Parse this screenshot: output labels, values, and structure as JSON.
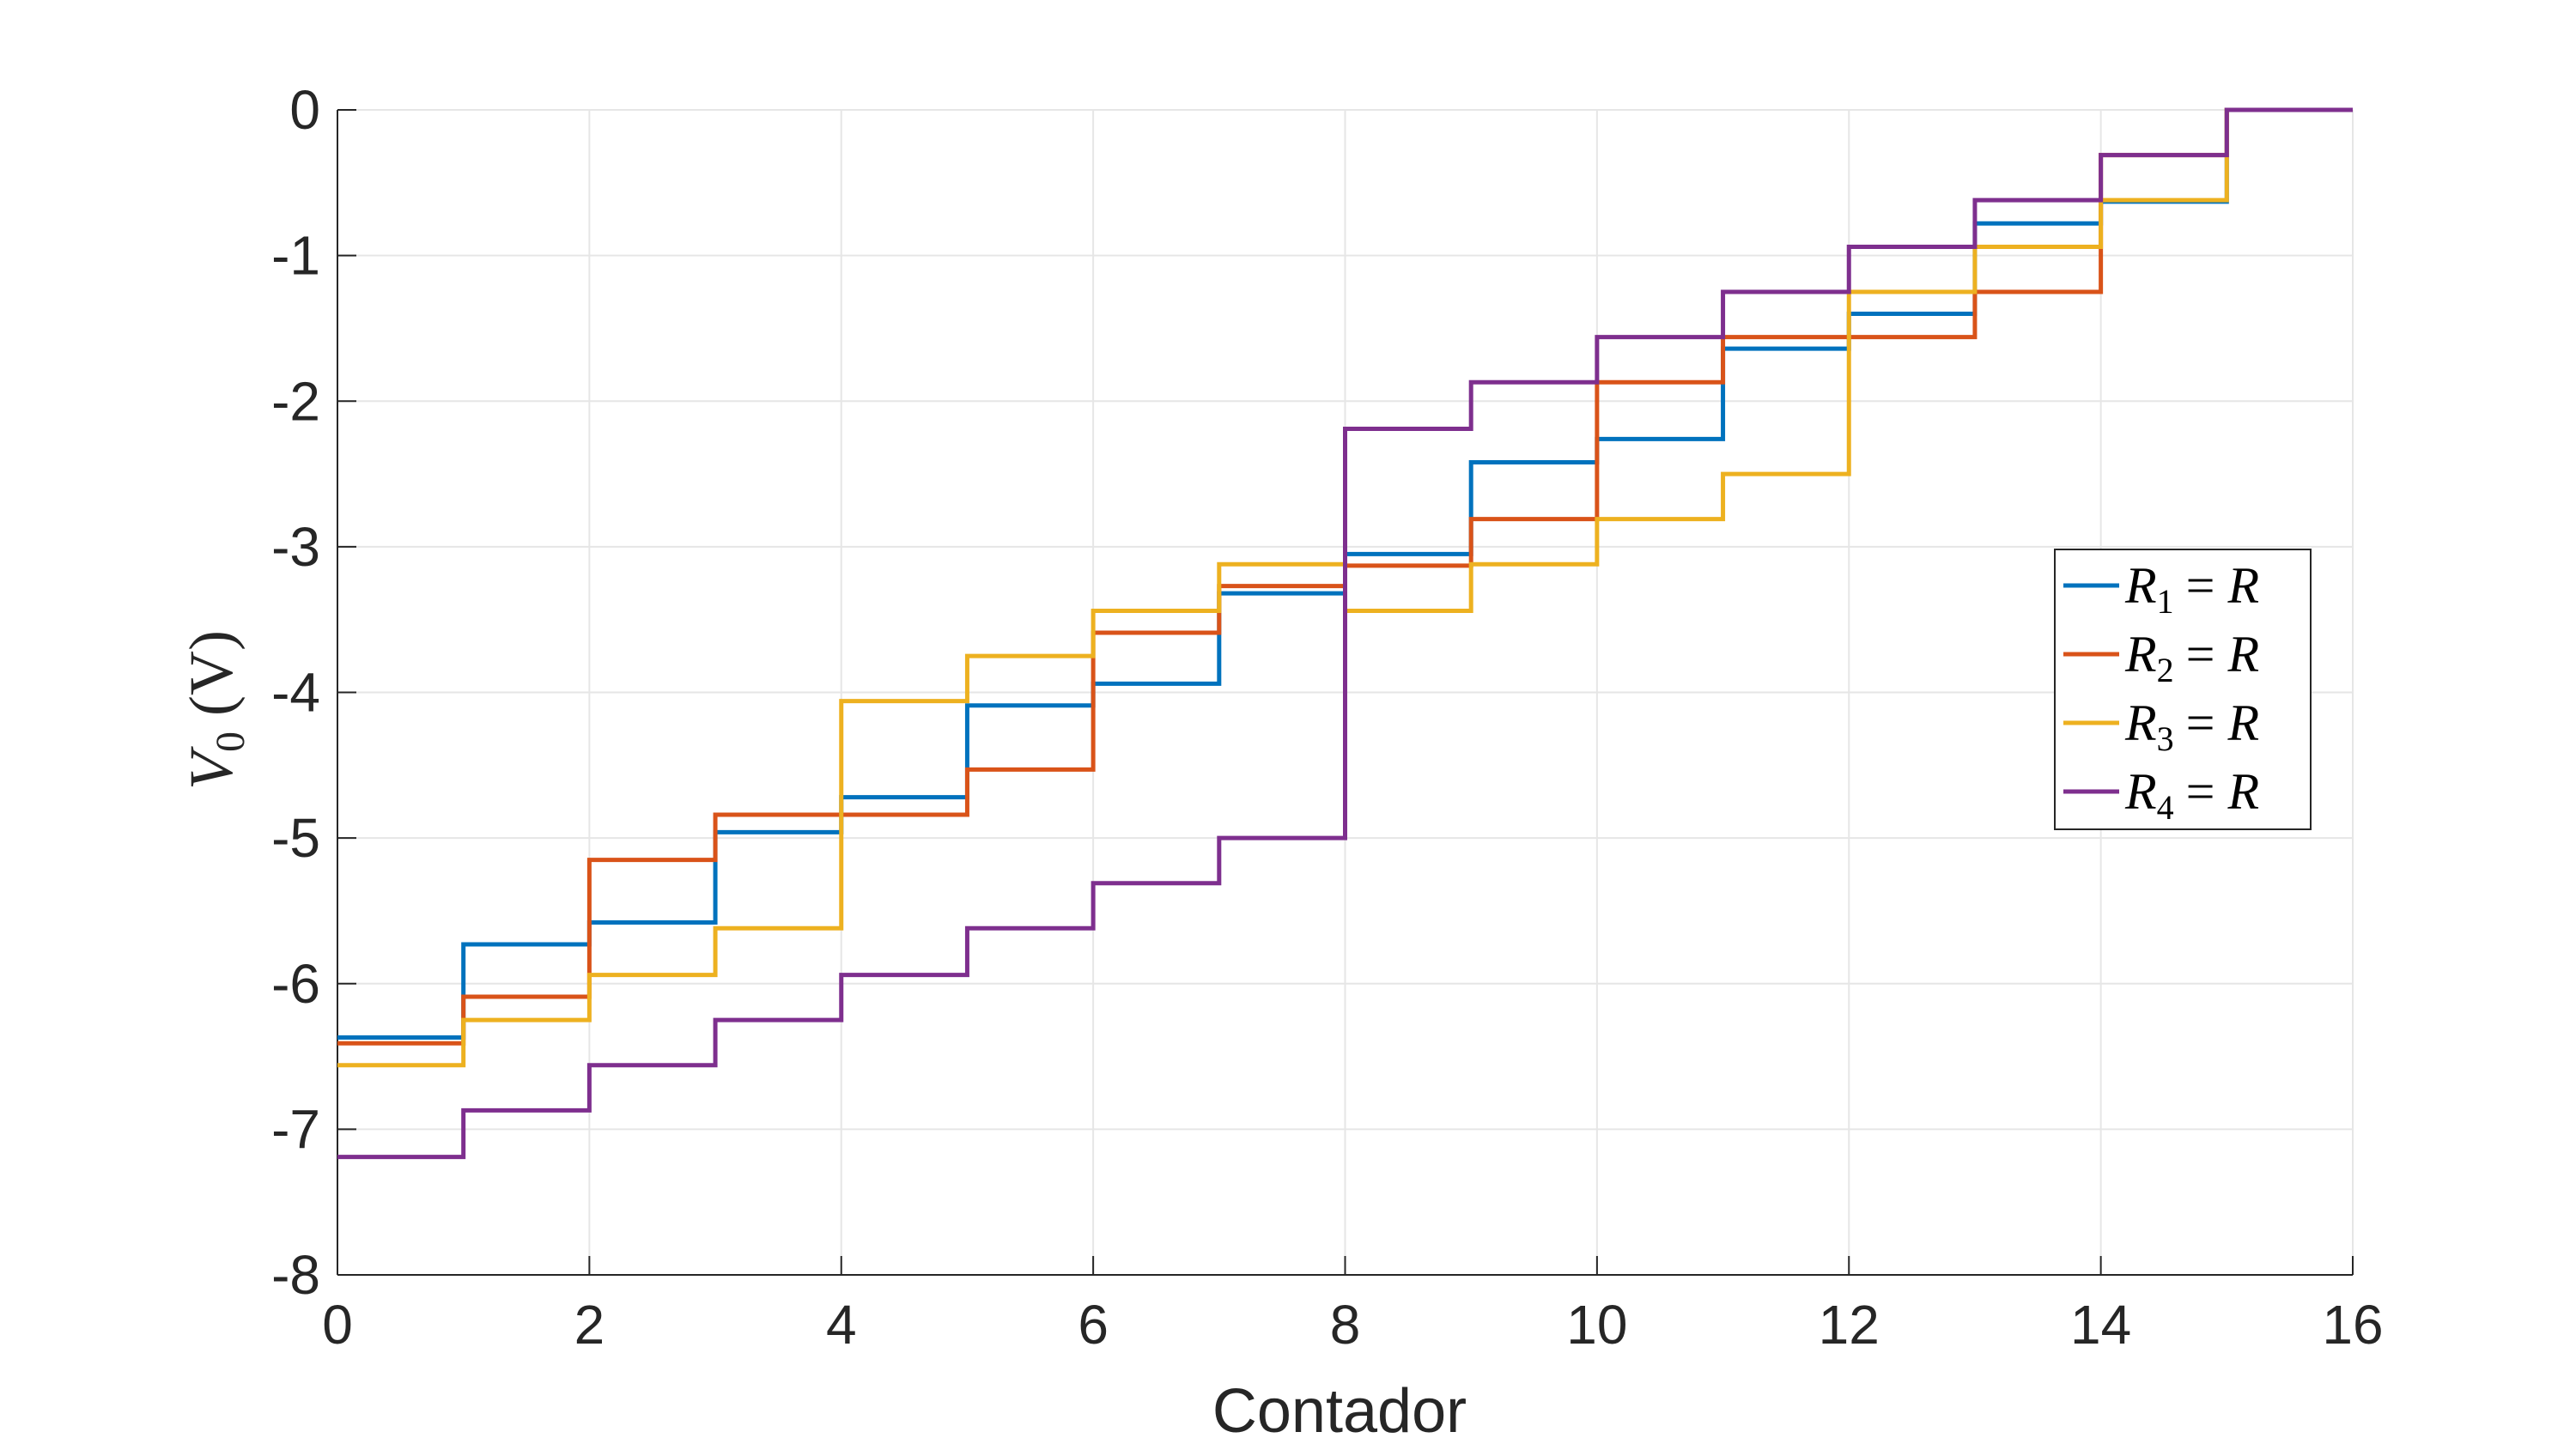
{
  "chart_data": {
    "type": "line",
    "style": "stairs",
    "title": "",
    "xlabel": "Contador",
    "ylabel": {
      "symbol": "V",
      "subscript": "0",
      "unit": "(V)"
    },
    "xlim": [
      0,
      16
    ],
    "ylim": [
      -8,
      0
    ],
    "xticks": [
      0,
      2,
      4,
      6,
      8,
      10,
      12,
      14,
      16
    ],
    "yticks": [
      0,
      -1,
      -2,
      -3,
      -4,
      -5,
      -6,
      -7,
      -8
    ],
    "grid": true,
    "legend_position": "right",
    "x": [
      0,
      1,
      2,
      3,
      4,
      5,
      6,
      7,
      8,
      9,
      10,
      11,
      12,
      13,
      14,
      15,
      16
    ],
    "series": [
      {
        "name": "R1 = R",
        "legend": {
          "sym": "R",
          "sub": "1",
          "rhs": "= R"
        },
        "color": "#0072BD",
        "values": [
          -6.37,
          -5.73,
          -5.58,
          -4.96,
          -4.72,
          -4.09,
          -3.94,
          -3.32,
          -3.05,
          -2.42,
          -2.26,
          -1.64,
          -1.4,
          -0.78,
          -0.63,
          0.0,
          0.0
        ]
      },
      {
        "name": "R2 = R",
        "legend": {
          "sym": "R",
          "sub": "2",
          "rhs": "= R"
        },
        "color": "#D95319",
        "values": [
          -6.41,
          -6.09,
          -5.15,
          -4.84,
          -4.84,
          -4.53,
          -3.59,
          -3.27,
          -3.13,
          -2.81,
          -1.87,
          -1.56,
          -1.56,
          -1.25,
          -0.31,
          0.0,
          0.0
        ]
      },
      {
        "name": "R3 = R",
        "legend": {
          "sym": "R",
          "sub": "3",
          "rhs": "= R"
        },
        "color": "#EDB120",
        "values": [
          -6.56,
          -6.25,
          -5.94,
          -5.62,
          -4.06,
          -3.75,
          -3.44,
          -3.12,
          -3.44,
          -3.12,
          -2.81,
          -2.5,
          -1.25,
          -0.94,
          -0.62,
          0.0,
          0.0
        ]
      },
      {
        "name": "R4 = R",
        "legend": {
          "sym": "R",
          "sub": "4",
          "rhs": "= R"
        },
        "color": "#7E2F8E",
        "values": [
          -7.19,
          -6.87,
          -6.56,
          -6.25,
          -5.94,
          -5.62,
          -5.31,
          -5.0,
          -2.19,
          -1.87,
          -1.56,
          -1.25,
          -0.94,
          -0.62,
          -0.31,
          0.0,
          0.0
        ]
      }
    ]
  }
}
